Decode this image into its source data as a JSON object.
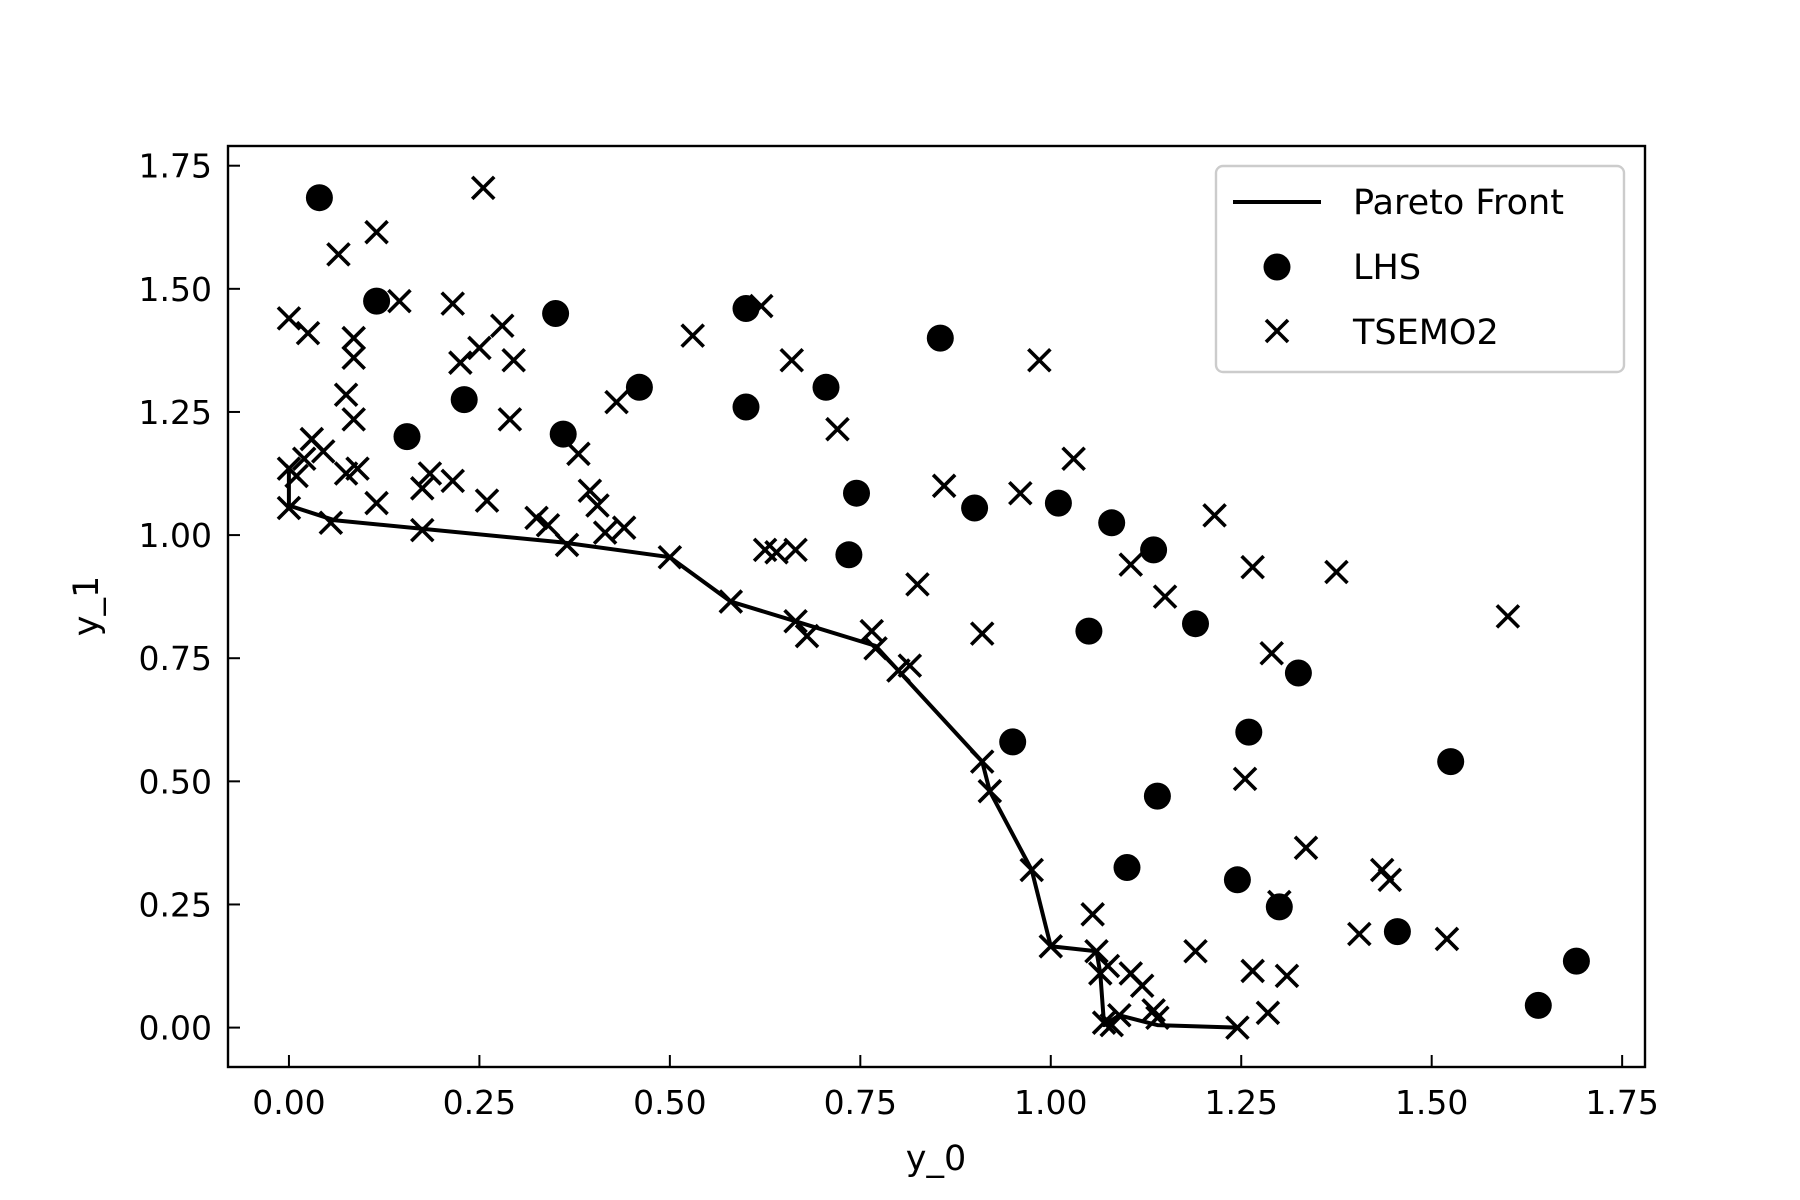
{
  "chart_data": {
    "type": "scatter",
    "title": "",
    "xlabel": "y_0",
    "ylabel": "y_1",
    "xlim": [
      -0.08,
      1.78
    ],
    "ylim": [
      -0.08,
      1.79
    ],
    "x_ticks": [
      0.0,
      0.25,
      0.5,
      0.75,
      1.0,
      1.25,
      1.5,
      1.75
    ],
    "x_tick_labels": [
      "0.00",
      "0.25",
      "0.50",
      "0.75",
      "1.00",
      "1.25",
      "1.50",
      "1.75"
    ],
    "y_ticks": [
      0.0,
      0.25,
      0.5,
      0.75,
      1.0,
      1.25,
      1.5,
      1.75
    ],
    "y_tick_labels": [
      "0.00",
      "0.25",
      "0.50",
      "0.75",
      "1.00",
      "1.25",
      "1.50",
      "1.75"
    ],
    "grid": false,
    "legend_position": "top-right",
    "colors": {
      "foreground": "#000000",
      "background": "#ffffff",
      "legend_border": "#cccccc"
    },
    "series": [
      {
        "name": "Pareto Front",
        "kind": "line",
        "points": [
          [
            0.0,
            1.13
          ],
          [
            0.0,
            1.06
          ],
          [
            0.06,
            1.03
          ],
          [
            0.36,
            0.985
          ],
          [
            0.5,
            0.955
          ],
          [
            0.58,
            0.865
          ],
          [
            0.665,
            0.825
          ],
          [
            0.77,
            0.775
          ],
          [
            0.91,
            0.54
          ],
          [
            0.92,
            0.48
          ],
          [
            0.975,
            0.32
          ],
          [
            1.0,
            0.165
          ],
          [
            1.06,
            0.155
          ],
          [
            1.065,
            0.11
          ],
          [
            1.07,
            0.005
          ],
          [
            1.09,
            0.025
          ],
          [
            1.14,
            0.005
          ],
          [
            1.245,
            0.0
          ]
        ]
      },
      {
        "name": "LHS",
        "kind": "scatter",
        "marker": "circle",
        "points": [
          [
            0.04,
            1.685
          ],
          [
            0.115,
            1.475
          ],
          [
            0.35,
            1.45
          ],
          [
            0.23,
            1.275
          ],
          [
            0.155,
            1.2
          ],
          [
            0.36,
            1.205
          ],
          [
            0.46,
            1.3
          ],
          [
            0.6,
            1.46
          ],
          [
            0.6,
            1.26
          ],
          [
            0.705,
            1.3
          ],
          [
            0.855,
            1.4
          ],
          [
            0.745,
            1.085
          ],
          [
            0.735,
            0.96
          ],
          [
            0.9,
            1.055
          ],
          [
            1.01,
            1.065
          ],
          [
            1.08,
            1.025
          ],
          [
            1.135,
            0.97
          ],
          [
            1.05,
            0.805
          ],
          [
            1.19,
            0.82
          ],
          [
            1.325,
            0.72
          ],
          [
            0.95,
            0.58
          ],
          [
            1.26,
            0.6
          ],
          [
            1.14,
            0.47
          ],
          [
            1.1,
            0.325
          ],
          [
            1.245,
            0.3
          ],
          [
            1.3,
            0.245
          ],
          [
            1.455,
            0.195
          ],
          [
            1.525,
            0.54
          ],
          [
            1.64,
            0.045
          ],
          [
            1.69,
            0.135
          ]
        ]
      },
      {
        "name": "TSEMO2",
        "kind": "scatter",
        "marker": "x",
        "points": [
          [
            0.255,
            1.705
          ],
          [
            0.115,
            1.615
          ],
          [
            0.065,
            1.57
          ],
          [
            0.145,
            1.475
          ],
          [
            0.215,
            1.47
          ],
          [
            0.0,
            1.44
          ],
          [
            0.025,
            1.41
          ],
          [
            0.085,
            1.4
          ],
          [
            0.28,
            1.425
          ],
          [
            0.25,
            1.38
          ],
          [
            0.225,
            1.35
          ],
          [
            0.295,
            1.355
          ],
          [
            0.085,
            1.36
          ],
          [
            0.075,
            1.285
          ],
          [
            0.085,
            1.235
          ],
          [
            0.29,
            1.235
          ],
          [
            0.03,
            1.195
          ],
          [
            0.045,
            1.17
          ],
          [
            0.02,
            1.155
          ],
          [
            0.0,
            1.135
          ],
          [
            0.01,
            1.12
          ],
          [
            0.075,
            1.125
          ],
          [
            0.09,
            1.135
          ],
          [
            0.185,
            1.125
          ],
          [
            0.175,
            1.095
          ],
          [
            0.215,
            1.11
          ],
          [
            0.115,
            1.065
          ],
          [
            0.26,
            1.07
          ],
          [
            0.0,
            1.055
          ],
          [
            0.055,
            1.025
          ],
          [
            0.175,
            1.01
          ],
          [
            0.325,
            1.035
          ],
          [
            0.34,
            1.02
          ],
          [
            0.365,
            0.98
          ],
          [
            0.38,
            1.165
          ],
          [
            0.395,
            1.09
          ],
          [
            0.405,
            1.06
          ],
          [
            0.415,
            1.005
          ],
          [
            0.44,
            1.015
          ],
          [
            0.43,
            1.27
          ],
          [
            0.53,
            1.405
          ],
          [
            0.5,
            0.955
          ],
          [
            0.58,
            0.865
          ],
          [
            0.62,
            1.465
          ],
          [
            0.625,
            0.97
          ],
          [
            0.64,
            0.965
          ],
          [
            0.665,
            0.97
          ],
          [
            0.66,
            1.355
          ],
          [
            0.72,
            1.215
          ],
          [
            0.665,
            0.825
          ],
          [
            0.68,
            0.795
          ],
          [
            0.765,
            0.805
          ],
          [
            0.77,
            0.77
          ],
          [
            0.8,
            0.725
          ],
          [
            0.815,
            0.735
          ],
          [
            0.825,
            0.9
          ],
          [
            0.86,
            1.1
          ],
          [
            0.91,
            0.8
          ],
          [
            0.96,
            1.085
          ],
          [
            0.985,
            1.355
          ],
          [
            1.03,
            1.155
          ],
          [
            0.91,
            0.54
          ],
          [
            0.92,
            0.48
          ],
          [
            0.975,
            0.32
          ],
          [
            1.0,
            0.165
          ],
          [
            1.055,
            0.23
          ],
          [
            1.06,
            0.155
          ],
          [
            1.065,
            0.11
          ],
          [
            1.075,
            0.125
          ],
          [
            1.07,
            0.01
          ],
          [
            1.08,
            0.005
          ],
          [
            1.09,
            0.025
          ],
          [
            1.105,
            0.11
          ],
          [
            1.12,
            0.085
          ],
          [
            1.135,
            0.035
          ],
          [
            1.14,
            0.02
          ],
          [
            1.105,
            0.94
          ],
          [
            1.15,
            0.875
          ],
          [
            1.19,
            0.155
          ],
          [
            1.215,
            1.04
          ],
          [
            1.245,
            0.0
          ],
          [
            1.255,
            0.505
          ],
          [
            1.265,
            0.935
          ],
          [
            1.265,
            0.115
          ],
          [
            1.29,
            0.76
          ],
          [
            1.285,
            0.03
          ],
          [
            1.3,
            0.255
          ],
          [
            1.31,
            0.105
          ],
          [
            1.335,
            0.365
          ],
          [
            1.375,
            0.925
          ],
          [
            1.405,
            0.19
          ],
          [
            1.435,
            0.32
          ],
          [
            1.445,
            0.3
          ],
          [
            1.52,
            0.18
          ],
          [
            1.6,
            0.835
          ]
        ]
      }
    ]
  }
}
